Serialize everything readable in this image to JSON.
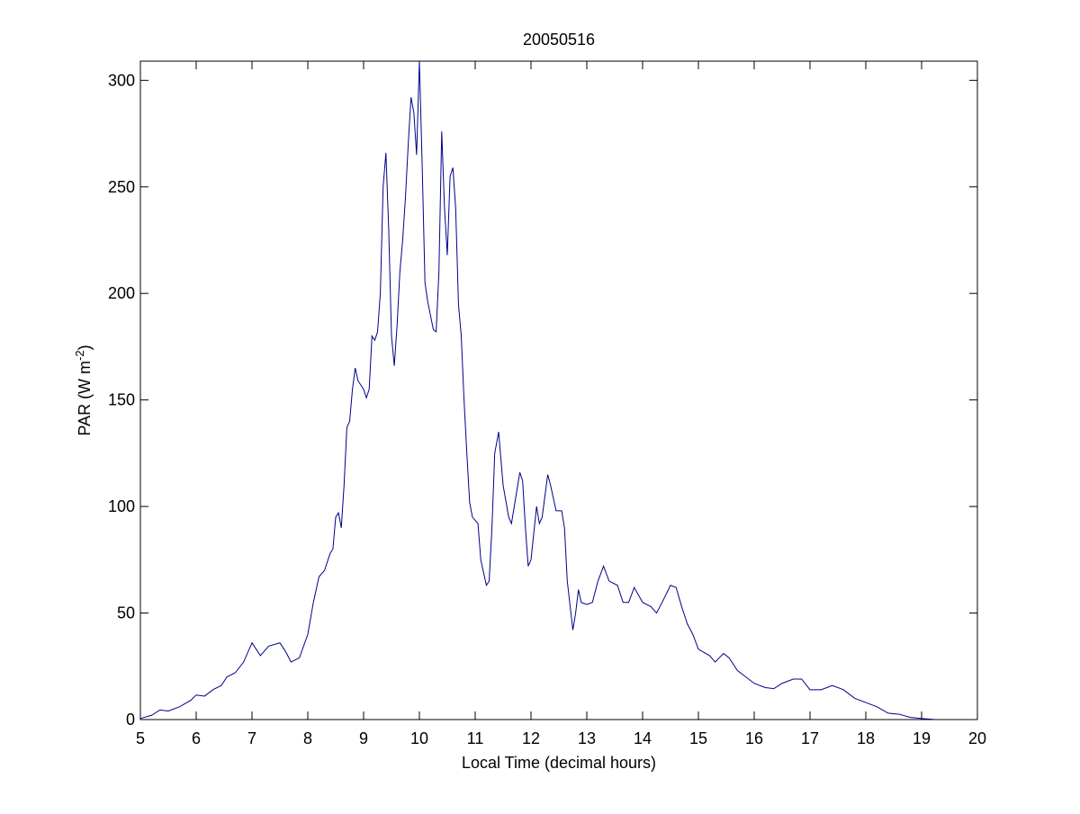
{
  "chart_data": {
    "type": "line",
    "title": "20050516",
    "xlabel": "Local Time (decimal hours)",
    "ylabel": {
      "text": "PAR (W m",
      "superscript": "-2",
      "suffix": ")"
    },
    "xlim": [
      5,
      20
    ],
    "xticks": [
      5,
      6,
      7,
      8,
      9,
      10,
      11,
      12,
      13,
      14,
      15,
      16,
      17,
      18,
      19,
      20
    ],
    "ylim": [
      0,
      309
    ],
    "yticks": [
      0,
      50,
      100,
      150,
      200,
      250,
      300
    ],
    "grid": false,
    "series": [
      {
        "color": "#00008b",
        "x": [
          5.0,
          5.2,
          5.35,
          5.5,
          5.7,
          5.9,
          6.0,
          6.15,
          6.3,
          6.45,
          6.55,
          6.7,
          6.85,
          7.0,
          7.15,
          7.3,
          7.5,
          7.6,
          7.7,
          7.85,
          8.0,
          8.1,
          8.2,
          8.3,
          8.4,
          8.45,
          8.5,
          8.55,
          8.6,
          8.65,
          8.7,
          8.75,
          8.8,
          8.85,
          8.9,
          9.0,
          9.05,
          9.1,
          9.15,
          9.2,
          9.25,
          9.3,
          9.35,
          9.4,
          9.45,
          9.5,
          9.55,
          9.6,
          9.65,
          9.7,
          9.75,
          9.8,
          9.85,
          9.9,
          9.95,
          10.0,
          10.05,
          10.1,
          10.15,
          10.25,
          10.3,
          10.35,
          10.4,
          10.45,
          10.5,
          10.55,
          10.6,
          10.65,
          10.7,
          10.75,
          10.8,
          10.85,
          10.9,
          10.95,
          11.05,
          11.1,
          11.2,
          11.25,
          11.3,
          11.35,
          11.42,
          11.5,
          11.6,
          11.65,
          11.7,
          11.8,
          11.85,
          11.9,
          11.95,
          12.0,
          12.1,
          12.15,
          12.2,
          12.3,
          12.35,
          12.45,
          12.55,
          12.6,
          12.65,
          12.75,
          12.8,
          12.85,
          12.9,
          13.0,
          13.1,
          13.2,
          13.3,
          13.4,
          13.55,
          13.65,
          13.75,
          13.85,
          14.0,
          14.15,
          14.25,
          14.35,
          14.5,
          14.6,
          14.7,
          14.8,
          14.9,
          15.0,
          15.2,
          15.3,
          15.45,
          15.55,
          15.7,
          15.85,
          16.0,
          16.2,
          16.35,
          16.5,
          16.7,
          16.85,
          17.0,
          17.2,
          17.4,
          17.6,
          17.8,
          18.0,
          18.2,
          18.4,
          18.6,
          18.8,
          19.0,
          19.25
        ],
        "values": [
          0.5,
          2,
          4.5,
          4,
          6,
          9,
          11.5,
          11,
          14,
          16,
          20,
          22,
          27,
          36,
          30,
          34.5,
          36,
          32,
          27,
          29,
          40,
          55,
          67,
          70,
          78,
          80,
          95,
          97,
          90,
          110,
          137,
          140,
          155,
          165,
          159,
          155,
          151,
          155,
          180,
          178,
          182,
          200,
          250,
          266,
          230,
          180,
          166,
          185,
          210,
          225,
          245,
          270,
          292,
          285,
          265,
          309,
          260,
          205,
          196,
          183,
          182,
          210,
          276,
          240,
          218,
          255,
          259,
          240,
          195,
          180,
          150,
          125,
          102,
          95,
          92,
          75,
          63,
          65,
          90,
          125,
          135,
          110,
          95,
          92,
          100,
          116,
          112,
          90,
          72,
          75,
          100,
          92,
          95,
          115,
          110,
          98,
          98,
          90,
          65,
          42,
          50,
          61,
          55,
          54,
          55,
          65,
          72,
          65,
          63,
          55,
          55,
          62,
          55,
          53,
          50,
          55,
          63,
          62,
          53,
          45,
          40,
          33,
          30,
          27,
          31,
          29,
          23,
          20,
          17,
          15,
          14.5,
          17,
          19,
          19,
          14,
          14,
          16,
          14,
          10,
          8,
          6,
          3,
          2.5,
          1,
          0.5,
          0
        ]
      }
    ]
  }
}
